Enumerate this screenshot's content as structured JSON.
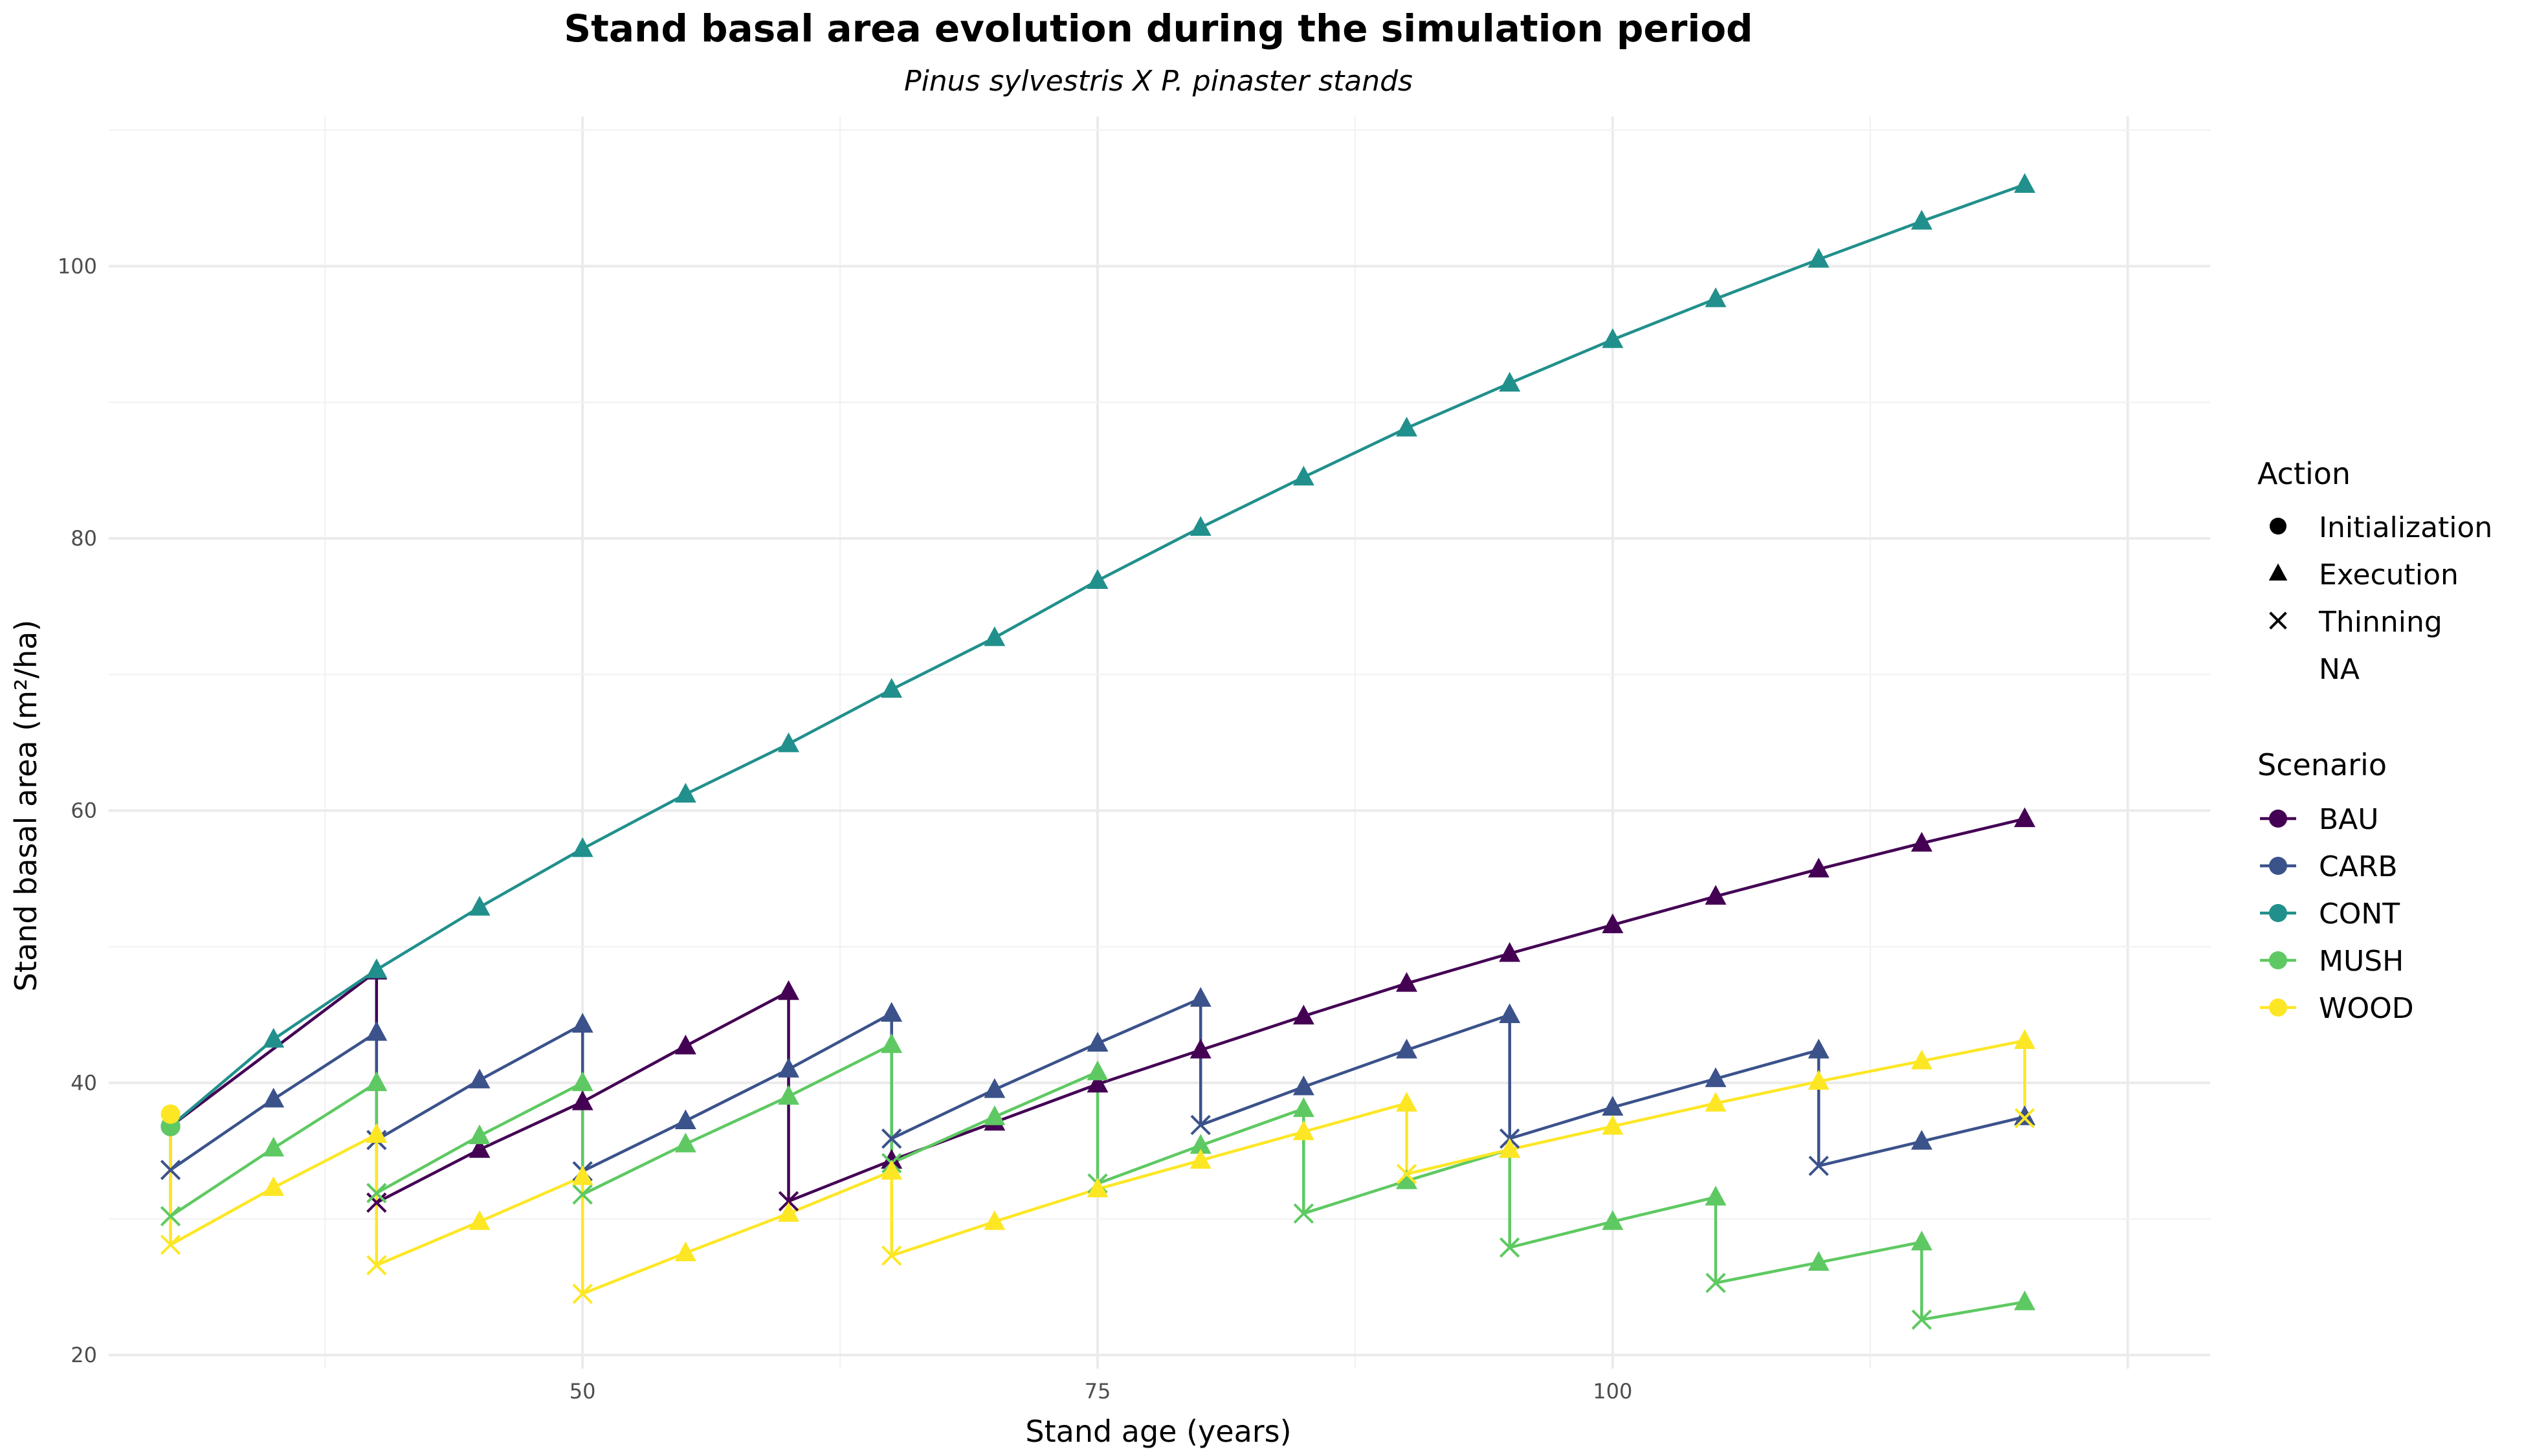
{
  "chart_data": {
    "type": "line",
    "title": "Stand basal area evolution during the simulation period",
    "subtitle": "Pinus sylvestris X P. pinaster stands",
    "xlabel": "Stand age (years)",
    "ylabel": "Stand basal area (m²/ha)",
    "xlim": [
      27,
      129
    ],
    "ylim": [
      19,
      111
    ],
    "x_ticks": [
      50,
      75,
      100
    ],
    "y_ticks": [
      20,
      40,
      60,
      80,
      100
    ],
    "grid": true,
    "legend": {
      "placement": "right",
      "action_title": "Action",
      "actions": [
        {
          "label": "Initialization",
          "shape": "circle"
        },
        {
          "label": "Execution",
          "shape": "triangle"
        },
        {
          "label": "Thinning",
          "shape": "cross"
        },
        {
          "label": "NA",
          "shape": "none"
        }
      ],
      "scenario_title": "Scenario"
    },
    "series": [
      {
        "name": "BAU",
        "color": "#440154",
        "points": [
          [
            30,
            36.8,
            "i"
          ],
          [
            40,
            48.2,
            "e"
          ],
          [
            40,
            31.2,
            "t"
          ],
          [
            45,
            35.1,
            "e"
          ],
          [
            50,
            38.6,
            "e"
          ],
          [
            55,
            42.7,
            "e"
          ],
          [
            60,
            46.7,
            "e"
          ],
          [
            60,
            31.3,
            "t"
          ],
          [
            65,
            34.3,
            "e"
          ],
          [
            70,
            37.1,
            "e"
          ],
          [
            75,
            39.9,
            "e"
          ],
          [
            80,
            42.4,
            "e"
          ],
          [
            85,
            44.9,
            "e"
          ],
          [
            90,
            47.3,
            "e"
          ],
          [
            95,
            49.5,
            "e"
          ],
          [
            100,
            51.6,
            "e"
          ],
          [
            105,
            53.7,
            "e"
          ],
          [
            110,
            55.7,
            "e"
          ],
          [
            115,
            57.6,
            "e"
          ],
          [
            120,
            59.4,
            "e"
          ]
        ]
      },
      {
        "name": "CARB",
        "color": "#3b528b",
        "points": [
          [
            30,
            36.8,
            "i"
          ],
          [
            30,
            33.6,
            "t"
          ],
          [
            35,
            38.8,
            "e"
          ],
          [
            40,
            43.7,
            "e"
          ],
          [
            40,
            35.8,
            "t"
          ],
          [
            45,
            40.2,
            "e"
          ],
          [
            50,
            44.3,
            "e"
          ],
          [
            50,
            33.5,
            "t"
          ],
          [
            55,
            37.2,
            "e"
          ],
          [
            60,
            41.0,
            "e"
          ],
          [
            65,
            45.1,
            "e"
          ],
          [
            65,
            35.9,
            "t"
          ],
          [
            70,
            39.5,
            "e"
          ],
          [
            75,
            42.9,
            "e"
          ],
          [
            80,
            46.2,
            "e"
          ],
          [
            80,
            36.9,
            "t"
          ],
          [
            85,
            39.7,
            "e"
          ],
          [
            90,
            42.4,
            "e"
          ],
          [
            95,
            45.0,
            "e"
          ],
          [
            95,
            35.9,
            "t"
          ],
          [
            100,
            38.2,
            "e"
          ],
          [
            105,
            40.3,
            "e"
          ],
          [
            110,
            42.4,
            "e"
          ],
          [
            110,
            33.9,
            "t"
          ],
          [
            115,
            35.7,
            "e"
          ],
          [
            120,
            37.5,
            "e"
          ]
        ]
      },
      {
        "name": "CONT",
        "color": "#21908c",
        "points": [
          [
            30,
            36.8,
            "i"
          ],
          [
            35,
            43.2,
            "e"
          ],
          [
            40,
            48.3,
            "e"
          ],
          [
            45,
            52.9,
            "e"
          ],
          [
            50,
            57.2,
            "e"
          ],
          [
            55,
            61.2,
            "e"
          ],
          [
            60,
            64.9,
            "e"
          ],
          [
            65,
            68.9,
            "e"
          ],
          [
            70,
            72.7,
            "e"
          ],
          [
            75,
            76.9,
            "e"
          ],
          [
            80,
            80.8,
            "e"
          ],
          [
            85,
            84.5,
            "e"
          ],
          [
            90,
            88.1,
            "e"
          ],
          [
            95,
            91.4,
            "e"
          ],
          [
            100,
            94.6,
            "e"
          ],
          [
            105,
            97.6,
            "e"
          ],
          [
            110,
            100.5,
            "e"
          ],
          [
            115,
            103.3,
            "e"
          ],
          [
            120,
            106.0,
            "e"
          ]
        ]
      },
      {
        "name": "MUSH",
        "color": "#5ec962",
        "points": [
          [
            30,
            36.8,
            "i"
          ],
          [
            30,
            30.2,
            "t"
          ],
          [
            35,
            35.2,
            "e"
          ],
          [
            40,
            40.0,
            "e"
          ],
          [
            40,
            31.9,
            "t"
          ],
          [
            45,
            36.1,
            "e"
          ],
          [
            50,
            40.0,
            "e"
          ],
          [
            50,
            31.8,
            "t"
          ],
          [
            55,
            35.5,
            "e"
          ],
          [
            60,
            39.0,
            "e"
          ],
          [
            65,
            42.8,
            "e"
          ],
          [
            65,
            34.1,
            "t"
          ],
          [
            70,
            37.5,
            "e"
          ],
          [
            75,
            40.8,
            "e"
          ],
          [
            75,
            32.6,
            "t"
          ],
          [
            80,
            35.4,
            "e"
          ],
          [
            85,
            38.1,
            "e"
          ],
          [
            85,
            30.4,
            "t"
          ],
          [
            90,
            32.8,
            "e"
          ],
          [
            95,
            35.1,
            "e"
          ],
          [
            95,
            27.9,
            "t"
          ],
          [
            100,
            29.8,
            "e"
          ],
          [
            105,
            31.6,
            "e"
          ],
          [
            105,
            25.3,
            "t"
          ],
          [
            110,
            26.8,
            "e"
          ],
          [
            115,
            28.3,
            "e"
          ],
          [
            115,
            22.6,
            "t"
          ],
          [
            120,
            23.9,
            "e"
          ]
        ]
      },
      {
        "name": "WOOD",
        "color": "#fde725",
        "points": [
          [
            30,
            37.7,
            "i"
          ],
          [
            30,
            28.1,
            "t"
          ],
          [
            35,
            32.3,
            "e"
          ],
          [
            40,
            36.2,
            "e"
          ],
          [
            40,
            26.6,
            "t"
          ],
          [
            45,
            29.8,
            "e"
          ],
          [
            50,
            33.1,
            "e"
          ],
          [
            50,
            24.5,
            "t"
          ],
          [
            55,
            27.5,
            "e"
          ],
          [
            60,
            30.4,
            "e"
          ],
          [
            65,
            33.5,
            "e"
          ],
          [
            65,
            27.3,
            "t"
          ],
          [
            70,
            29.8,
            "e"
          ],
          [
            75,
            32.2,
            "e"
          ],
          [
            80,
            34.3,
            "e"
          ],
          [
            85,
            36.4,
            "e"
          ],
          [
            90,
            38.5,
            "e"
          ],
          [
            90,
            33.3,
            "t"
          ],
          [
            95,
            35.1,
            "e"
          ],
          [
            100,
            36.8,
            "e"
          ],
          [
            105,
            38.5,
            "e"
          ],
          [
            110,
            40.1,
            "e"
          ],
          [
            115,
            41.6,
            "e"
          ],
          [
            120,
            43.1,
            "e"
          ],
          [
            120,
            37.4,
            "t"
          ]
        ]
      }
    ]
  }
}
